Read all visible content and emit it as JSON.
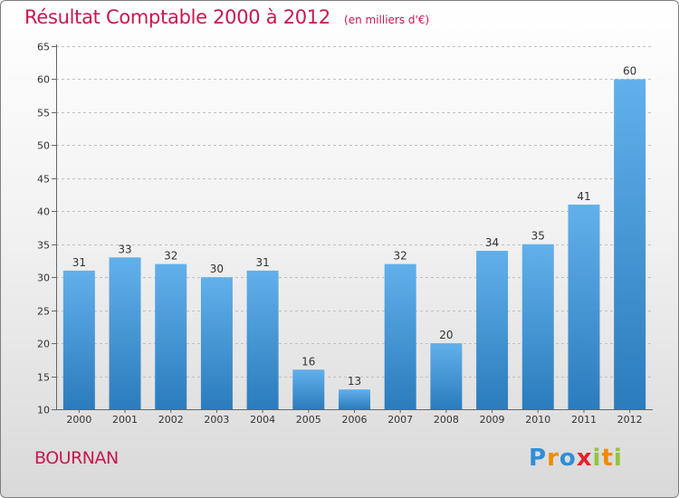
{
  "header": {
    "title": "Résultat Comptable 2000 à 2012",
    "subtitle": "(en milliers d'€)"
  },
  "footer": {
    "town": "BOURNAN",
    "logo": "Proxiti"
  },
  "colors": {
    "title": "#c8184f",
    "bar_top": "#62b0eb",
    "bar_bottom": "#2b7cbd",
    "grid": "#c0c0c0"
  },
  "chart_data": {
    "type": "bar",
    "title": "Résultat Comptable 2000 à 2012",
    "subtitle": "(en milliers d'€)",
    "xlabel": "",
    "ylabel": "",
    "categories": [
      "2000",
      "2001",
      "2002",
      "2003",
      "2004",
      "2005",
      "2006",
      "2007",
      "2008",
      "2009",
      "2010",
      "2011",
      "2012"
    ],
    "values": [
      31,
      33,
      32,
      30,
      31,
      16,
      13,
      32,
      20,
      34,
      35,
      41,
      60
    ],
    "ylim": [
      10,
      65
    ],
    "yticks": [
      10,
      15,
      20,
      25,
      30,
      35,
      40,
      45,
      50,
      55,
      60,
      65
    ],
    "grid": true,
    "data_labels": true
  }
}
